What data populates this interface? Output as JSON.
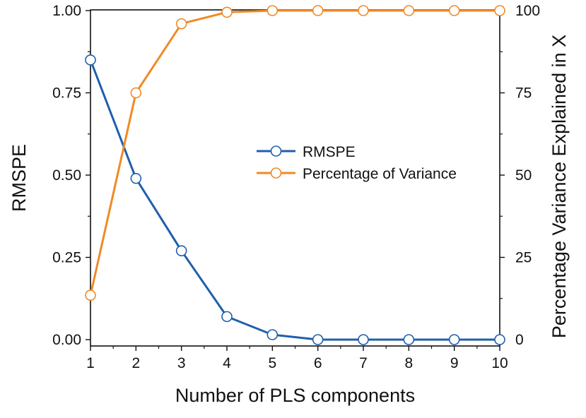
{
  "chart_data": {
    "type": "line",
    "title": "",
    "xlabel": "Number of PLS components",
    "ylabel": "RMSPE",
    "y2label": "Percentage Variance Explained in X",
    "x": [
      1,
      2,
      3,
      4,
      5,
      6,
      7,
      8,
      9,
      10
    ],
    "xlim": [
      1,
      10
    ],
    "ylim": [
      0,
      1.0
    ],
    "y2lim": [
      0,
      100
    ],
    "xticks": [
      "1",
      "2",
      "3",
      "4",
      "5",
      "6",
      "7",
      "8",
      "9",
      "10"
    ],
    "yticks": [
      "0.00",
      "0.25",
      "0.50",
      "0.75",
      "1.00"
    ],
    "y2ticks": [
      "0",
      "25",
      "50",
      "75",
      "100"
    ],
    "grid": false,
    "legend_position": "center-right",
    "series": [
      {
        "name": "RMSPE",
        "axis": "left",
        "color": "#1f5fad",
        "values": [
          0.85,
          0.49,
          0.27,
          0.07,
          0.015,
          0.0,
          0.0,
          0.0,
          0.0,
          0.0
        ]
      },
      {
        "name": "Percentage of Variance",
        "axis": "right",
        "color": "#f08a24",
        "values": [
          13.5,
          75,
          96,
          99.5,
          100,
          100,
          100,
          100,
          100,
          100
        ]
      }
    ]
  }
}
